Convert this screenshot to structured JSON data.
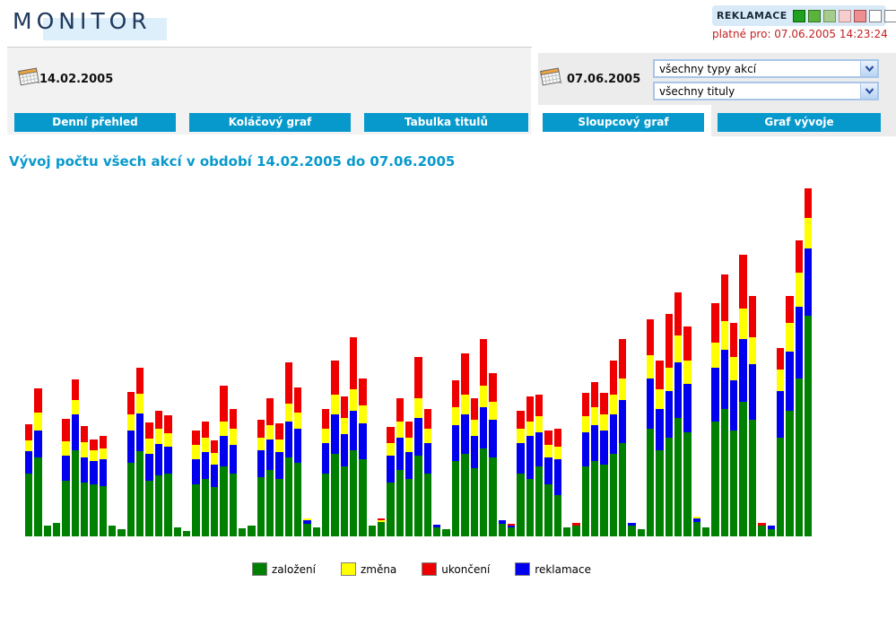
{
  "header": {
    "logo": "MONITOR",
    "reklamace_label": "REKLAMACE",
    "reklamace_scale": [
      {
        "color": "#1fa11f",
        "border": "#0d600d"
      },
      {
        "color": "#5cb33c",
        "border": "#35751f"
      },
      {
        "color": "#a6cb8c",
        "border": "#6f9757"
      },
      {
        "color": "#f7cdcd",
        "border": "#b98f8f"
      },
      {
        "color": "#ee8f8f",
        "border": "#a05050"
      },
      {
        "color": "#ffffff",
        "border": "#808080"
      },
      {
        "color": "#ffffff",
        "border": "#808080"
      }
    ],
    "valid_for": "platné pro: 07.06.2005 14:23:24"
  },
  "filters": {
    "date_from": "14.02.2005",
    "date_to": "07.06.2005",
    "type_select_value": "všechny typy akcí",
    "title_select_value": "všechny tituly"
  },
  "tabs": [
    {
      "label": "Denní přehled",
      "active": false
    },
    {
      "label": "Koláčový graf",
      "active": false
    },
    {
      "label": "Tabulka titulů",
      "active": false
    },
    {
      "label": "Sloupcový graf",
      "active": true
    },
    {
      "label": "Graf vývoje",
      "active": false
    }
  ],
  "chart": {
    "title": "Vývoj počtu všech akcí v období 14.02.2005 do 07.06.2005"
  },
  "chart_data": {
    "type": "bar",
    "stacked": true,
    "title": "Vývoj počtu všech akcí v období 14.02.2005 do 07.06.2005",
    "period_from": "14.02.2005",
    "period_to": "07.06.2005",
    "x_axis": "days (no tick labels shown; weekend bars near zero)",
    "y_axis": "count (no axis scale shown; values are relative pixel heights, plot height 393)",
    "grid": false,
    "legend_position": "bottom",
    "stack_order_bottom_to_top": [
      "založení",
      "reklamace",
      "změna",
      "ukončení"
    ],
    "colors": {
      "zalozeni": "#008000",
      "reklamace": "#0000ee",
      "zmena": "#ffff00",
      "ukonceni": "#ee0000"
    },
    "bars_value_order": [
      "založení",
      "reklamace",
      "změna",
      "ukončení"
    ],
    "bars": [
      [
        70,
        25,
        12,
        18
      ],
      [
        88,
        30,
        20,
        27
      ],
      [
        12,
        0,
        0,
        0
      ],
      [
        15,
        0,
        0,
        0
      ],
      [
        62,
        28,
        16,
        25
      ],
      [
        96,
        40,
        16,
        23
      ],
      [
        60,
        28,
        17,
        18
      ],
      [
        58,
        26,
        12,
        12
      ],
      [
        56,
        30,
        12,
        14
      ],
      [
        12,
        0,
        0,
        0
      ],
      [
        8,
        0,
        0,
        0
      ],
      [
        82,
        36,
        18,
        25
      ],
      [
        95,
        42,
        22,
        29
      ],
      [
        62,
        30,
        17,
        18
      ],
      [
        68,
        35,
        17,
        20
      ],
      [
        70,
        30,
        15,
        20
      ],
      [
        10,
        0,
        0,
        0
      ],
      [
        6,
        0,
        0,
        0
      ],
      [
        58,
        28,
        16,
        16
      ],
      [
        64,
        30,
        16,
        18
      ],
      [
        55,
        25,
        13,
        14
      ],
      [
        78,
        34,
        16,
        40
      ],
      [
        70,
        32,
        18,
        22
      ],
      [
        9,
        0,
        0,
        0
      ],
      [
        12,
        0,
        0,
        0
      ],
      [
        66,
        30,
        14,
        20
      ],
      [
        74,
        34,
        16,
        30
      ],
      [
        64,
        30,
        14,
        18
      ],
      [
        88,
        40,
        20,
        46
      ],
      [
        82,
        38,
        18,
        28
      ],
      [
        14,
        4,
        2,
        0
      ],
      [
        10,
        0,
        0,
        0
      ],
      [
        70,
        34,
        16,
        22
      ],
      [
        92,
        44,
        22,
        38
      ],
      [
        78,
        36,
        18,
        24
      ],
      [
        96,
        44,
        24,
        58
      ],
      [
        86,
        40,
        20,
        30
      ],
      [
        12,
        0,
        0,
        0
      ],
      [
        16,
        0,
        2,
        2
      ],
      [
        60,
        30,
        14,
        18
      ],
      [
        74,
        36,
        18,
        26
      ],
      [
        64,
        30,
        16,
        18
      ],
      [
        90,
        42,
        22,
        46
      ],
      [
        70,
        34,
        16,
        22
      ],
      [
        10,
        3,
        0,
        0
      ],
      [
        8,
        0,
        0,
        0
      ],
      [
        84,
        40,
        20,
        30
      ],
      [
        92,
        44,
        22,
        46
      ],
      [
        76,
        36,
        18,
        24
      ],
      [
        98,
        46,
        24,
        52
      ],
      [
        88,
        42,
        20,
        32
      ],
      [
        14,
        4,
        0,
        0
      ],
      [
        10,
        2,
        0,
        2
      ],
      [
        70,
        34,
        16,
        20
      ],
      [
        64,
        48,
        16,
        28
      ],
      [
        78,
        38,
        18,
        24
      ],
      [
        58,
        30,
        14,
        16
      ],
      [
        46,
        40,
        14,
        20
      ],
      [
        10,
        0,
        0,
        0
      ],
      [
        12,
        0,
        0,
        3
      ],
      [
        78,
        38,
        18,
        26
      ],
      [
        84,
        40,
        20,
        28
      ],
      [
        80,
        38,
        18,
        24
      ],
      [
        92,
        44,
        22,
        38
      ],
      [
        104,
        48,
        24,
        44
      ],
      [
        12,
        3,
        0,
        0
      ],
      [
        8,
        0,
        0,
        0
      ],
      [
        120,
        56,
        26,
        40
      ],
      [
        96,
        46,
        22,
        32
      ],
      [
        110,
        52,
        26,
        60
      ],
      [
        132,
        62,
        30,
        48
      ],
      [
        116,
        54,
        26,
        38
      ],
      [
        16,
        4,
        2,
        0
      ],
      [
        10,
        0,
        0,
        0
      ],
      [
        128,
        60,
        28,
        44
      ],
      [
        142,
        66,
        32,
        52
      ],
      [
        118,
        56,
        26,
        38
      ],
      [
        150,
        70,
        34,
        60
      ],
      [
        130,
        62,
        30,
        46
      ],
      [
        12,
        0,
        0,
        3
      ],
      [
        8,
        4,
        0,
        0
      ],
      [
        110,
        52,
        24,
        24
      ],
      [
        140,
        66,
        32,
        30
      ],
      [
        176,
        80,
        38,
        36
      ],
      [
        246,
        75,
        34,
        33
      ]
    ]
  },
  "legend": [
    {
      "label": "založení",
      "color": "#008000"
    },
    {
      "label": "změna",
      "color": "#ffff00"
    },
    {
      "label": "ukončení",
      "color": "#ee0000"
    },
    {
      "label": "reklamace",
      "color": "#0000ee"
    }
  ]
}
